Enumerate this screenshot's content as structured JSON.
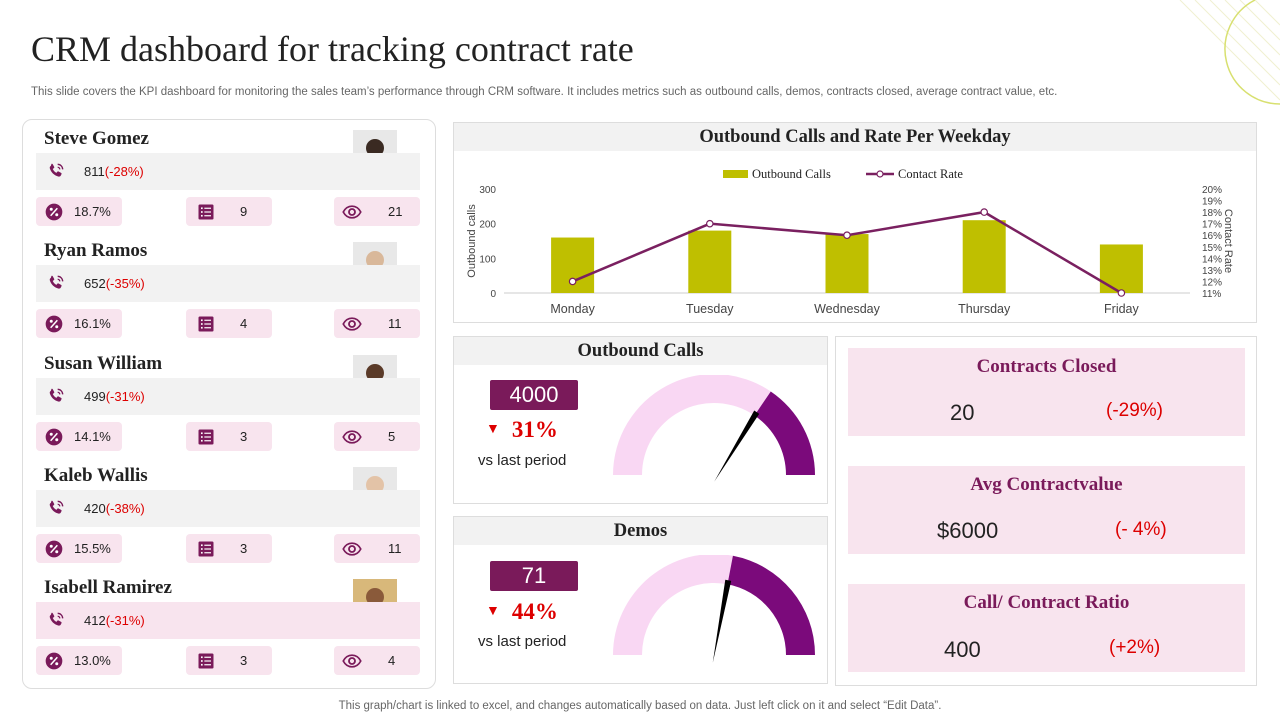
{
  "title": "CRM dashboard for tracking contract rate",
  "subtitle": "This slide covers the KPI dashboard for monitoring the sales team’s performance through CRM software. It includes metrics such as outbound calls, demos, contracts closed, average contract value, etc.",
  "footer": "This graph/chart is linked to excel,  and changes automatically based on data. Just left click on it and select “Edit Data”.",
  "colors": {
    "accent": "#7a1a5a",
    "bar": "#bfbf00",
    "line": "#7a2060",
    "pink": "#f8e4ee",
    "gauge_light": "#f9d7f3",
    "gauge_dark": "#7b0a7b",
    "negative": "#dd0000"
  },
  "people": [
    {
      "name": "Steve Gomez",
      "calls": "811",
      "calls_change": "(-28%)",
      "rate": "18.7%",
      "tasks": "9",
      "views": "21",
      "highlight": false
    },
    {
      "name": "Ryan Ramos",
      "calls": "652",
      "calls_change": "(-35%)",
      "rate": "16.1%",
      "tasks": "4",
      "views": "11",
      "highlight": false
    },
    {
      "name": "Susan William",
      "calls": "499",
      "calls_change": "(-31%)",
      "rate": "14.1%",
      "tasks": "3",
      "views": "5",
      "highlight": false
    },
    {
      "name": "Kaleb Wallis",
      "calls": "420",
      "calls_change": "(-38%)",
      "rate": "15.5%",
      "tasks": "3",
      "views": "11",
      "highlight": false
    },
    {
      "name": "Isabell Ramirez",
      "calls": "412",
      "calls_change": "(-31%)",
      "rate": "13.0%",
      "tasks": "3",
      "views": "4",
      "highlight": true
    }
  ],
  "outbound": {
    "title": "Outbound Calls",
    "value": "4000",
    "change": "31%",
    "vs": "vs last period",
    "gauge_fraction": 0.31
  },
  "demos": {
    "title": "Demos",
    "value": "71",
    "change": "44%",
    "vs": "vs last period",
    "gauge_fraction": 0.44
  },
  "kpis": [
    {
      "title": "Contracts Closed",
      "value": "20",
      "change": "(-29%)"
    },
    {
      "title": "Avg Contractvalue",
      "value": "$6000",
      "change": "(- 4%)"
    },
    {
      "title": "Call/ Contract Ratio",
      "value": "400",
      "change": "(+2%)"
    }
  ],
  "chart_data": {
    "type": "bar",
    "title": "Outbound Calls and Rate Per Weekday",
    "categories": [
      "Monday",
      "Tuesday",
      "Wednesday",
      "Thursday",
      "Friday"
    ],
    "series": [
      {
        "name": "Outbound Calls",
        "type": "bar",
        "axis": "left",
        "values": [
          160,
          180,
          170,
          210,
          140
        ]
      },
      {
        "name": "Contact Rate",
        "type": "line",
        "axis": "right",
        "values": [
          12.0,
          17.0,
          16.0,
          18.0,
          11.0
        ]
      }
    ],
    "ylabel": "Outbound calls",
    "y2label": "Contact Rate",
    "ylim": [
      0,
      300
    ],
    "yticks": [
      "0",
      "100",
      "200",
      "300"
    ],
    "y2lim": [
      11,
      20
    ],
    "y2ticks": [
      "11%",
      "12%",
      "13%",
      "14%",
      "15%",
      "16%",
      "17%",
      "18%",
      "19%",
      "20%"
    ],
    "legend": "top-center"
  }
}
